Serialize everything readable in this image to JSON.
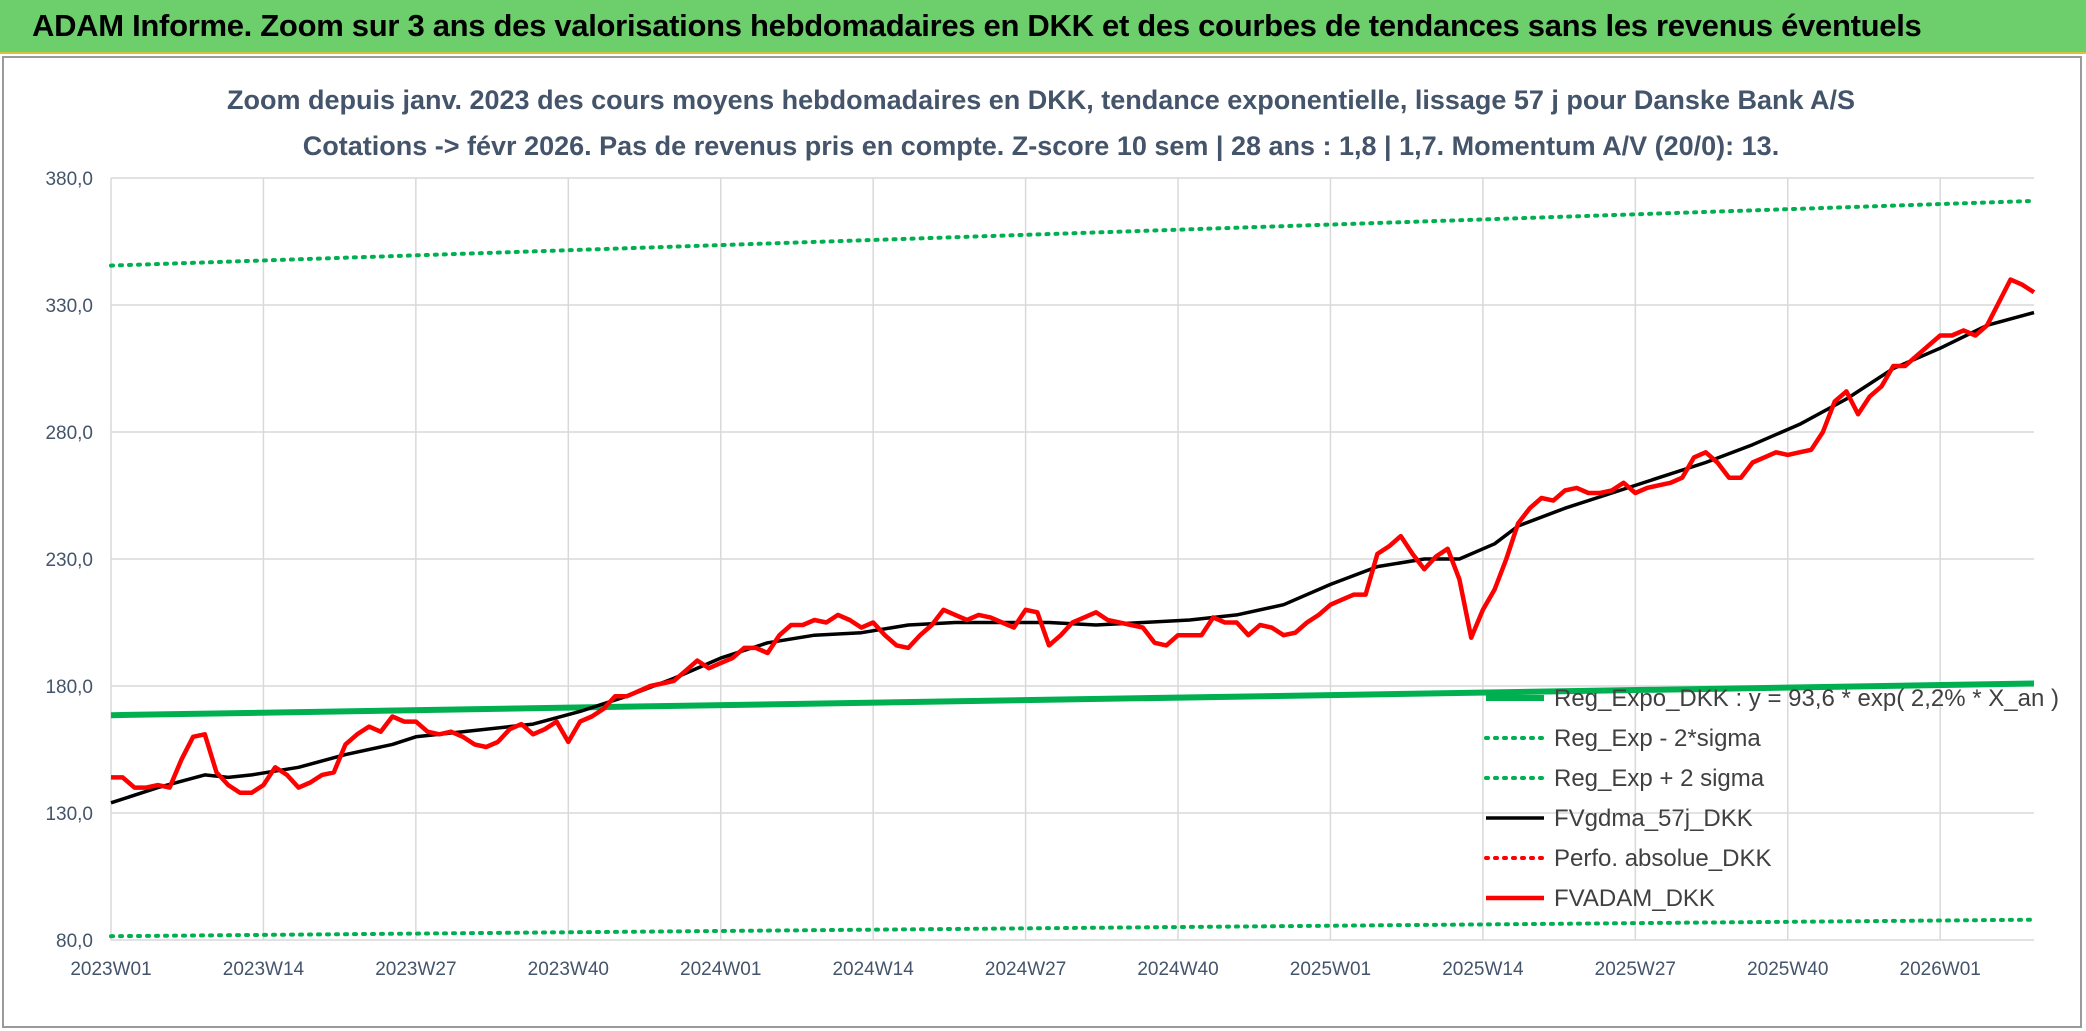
{
  "banner": {
    "title": "ADAM Informe. Zoom sur 3 ans des valorisations hebdomadaires en DKK et des courbes de tendances sans les revenus éventuels"
  },
  "chart_data": {
    "type": "line",
    "title_line1": "Zoom depuis janv. 2023 des cours moyens hebdomadaires en DKK, tendance exponentielle, lissage 57 j pour Danske Bank A/S",
    "title_line2": "Cotations -> févr 2026. Pas de revenus pris en compte. Z-score 10 sem | 28 ans : 1,8 | 1,7. Momentum A/V (20/0): 13.",
    "xlabel": "",
    "ylabel": "",
    "ylim": [
      80,
      380
    ],
    "y_ticks": [
      "80,0",
      "130,0",
      "180,0",
      "230,0",
      "280,0",
      "330,0",
      "380,0"
    ],
    "y_tick_values": [
      80,
      130,
      180,
      230,
      280,
      330,
      380
    ],
    "x_ticks": [
      "2023W01",
      "2023W14",
      "2023W27",
      "2023W40",
      "2024W01",
      "2024W14",
      "2024W27",
      "2024W40",
      "2025W01",
      "2025W14",
      "2025W27",
      "2025W40",
      "2026W01"
    ],
    "x_tick_weeks": [
      0,
      13,
      26,
      39,
      52,
      65,
      78,
      91,
      104,
      117,
      130,
      143,
      156
    ],
    "week_count": 165,
    "grid": true,
    "legend_position": "bottom-right",
    "series": [
      {
        "name": "Reg_Expo_DKK : y = 93,6 * exp( 2,2% * X_an )",
        "color": "#00b050",
        "style": "solid-thick",
        "x": [
          0,
          164
        ],
        "values": [
          168.5,
          181
        ]
      },
      {
        "name": "Reg_Exp - 2*sigma",
        "color": "#00b050",
        "style": "dotted",
        "x": [
          0,
          164
        ],
        "values": [
          81.5,
          88
        ]
      },
      {
        "name": "Reg_Exp + 2 sigma",
        "color": "#00b050",
        "style": "dotted",
        "x": [
          0,
          164
        ],
        "values": [
          345.5,
          371
        ]
      },
      {
        "name": "FVgdma_57j_DKK",
        "color": "#000000",
        "style": "solid",
        "x": [
          0,
          4,
          8,
          10,
          12,
          16,
          20,
          24,
          26,
          30,
          36,
          40,
          44,
          48,
          52,
          56,
          60,
          64,
          68,
          72,
          76,
          80,
          84,
          88,
          92,
          96,
          100,
          104,
          108,
          112,
          115,
          118,
          120,
          124,
          128,
          132,
          136,
          140,
          144,
          148,
          152,
          156,
          160,
          164
        ],
        "values": [
          134,
          140,
          145,
          144,
          145,
          148,
          153,
          157,
          160,
          162,
          165,
          170,
          176,
          183,
          191,
          197,
          200,
          201,
          204,
          205,
          205,
          205,
          204,
          205,
          206,
          208,
          212,
          220,
          227,
          230,
          230,
          236,
          243,
          250,
          256,
          262,
          268,
          275,
          283,
          293,
          305,
          313,
          322,
          327
        ]
      },
      {
        "name": "Perfo. absolue_DKK",
        "color": "#ff0000",
        "style": "dotted",
        "x": [],
        "values": []
      },
      {
        "name": "FVADAM_DKK",
        "color": "#ff0000",
        "style": "solid-thick",
        "x": [
          0,
          1,
          2,
          3,
          4,
          5,
          6,
          7,
          8,
          9,
          10,
          11,
          12,
          13,
          14,
          15,
          16,
          17,
          18,
          19,
          20,
          21,
          22,
          23,
          24,
          25,
          26,
          27,
          28,
          29,
          30,
          31,
          32,
          33,
          34,
          35,
          36,
          37,
          38,
          39,
          40,
          41,
          42,
          43,
          44,
          45,
          46,
          47,
          48,
          49,
          50,
          51,
          52,
          53,
          54,
          55,
          56,
          57,
          58,
          59,
          60,
          61,
          62,
          63,
          64,
          65,
          66,
          67,
          68,
          69,
          70,
          71,
          72,
          73,
          74,
          75,
          76,
          77,
          78,
          79,
          80,
          81,
          82,
          83,
          84,
          85,
          86,
          87,
          88,
          89,
          90,
          91,
          92,
          93,
          94,
          95,
          96,
          97,
          98,
          99,
          100,
          101,
          102,
          103,
          104,
          105,
          106,
          107,
          108,
          109,
          110,
          111,
          112,
          113,
          114,
          115,
          116,
          117,
          118,
          119,
          120,
          121,
          122,
          123,
          124,
          125,
          126,
          127,
          128,
          129,
          130,
          131,
          132,
          133,
          134,
          135,
          136,
          137,
          138,
          139,
          140,
          141,
          142,
          143,
          144,
          145,
          146,
          147,
          148,
          149,
          150,
          151,
          152,
          153,
          154,
          155,
          156,
          157,
          158,
          159,
          160,
          161,
          162,
          163,
          164
        ],
        "values": [
          144,
          144,
          140,
          140,
          141,
          140,
          151,
          160,
          161,
          146,
          141,
          138,
          138,
          141,
          148,
          145,
          140,
          142,
          145,
          146,
          157,
          161,
          164,
          162,
          168,
          166,
          166,
          162,
          161,
          162,
          160,
          157,
          156,
          158,
          163,
          165,
          161,
          163,
          166,
          158,
          166,
          168,
          171,
          176,
          176,
          178,
          180,
          181,
          182,
          186,
          190,
          187,
          189,
          191,
          195,
          195,
          193,
          200,
          204,
          204,
          206,
          205,
          208,
          206,
          203,
          205,
          200,
          196,
          195,
          200,
          204,
          210,
          208,
          206,
          208,
          207,
          205,
          203,
          210,
          209,
          196,
          200,
          205,
          207,
          209,
          206,
          205,
          204,
          203,
          197,
          196,
          200,
          200,
          200,
          207,
          205,
          205,
          200,
          204,
          203,
          200,
          201,
          205,
          208,
          212,
          214,
          216,
          216,
          232,
          235,
          239,
          232,
          226,
          231,
          234,
          222,
          199,
          210,
          218,
          230,
          244,
          250,
          254,
          253,
          257,
          258,
          256,
          256,
          257,
          260,
          256,
          258,
          259,
          260,
          262,
          270,
          272,
          268,
          262,
          262,
          268,
          270,
          272,
          271,
          272,
          273,
          280,
          292,
          296,
          287,
          294,
          298,
          306,
          306,
          310,
          314,
          318,
          318,
          320,
          318,
          322,
          331,
          340,
          338,
          335
        ]
      }
    ]
  }
}
